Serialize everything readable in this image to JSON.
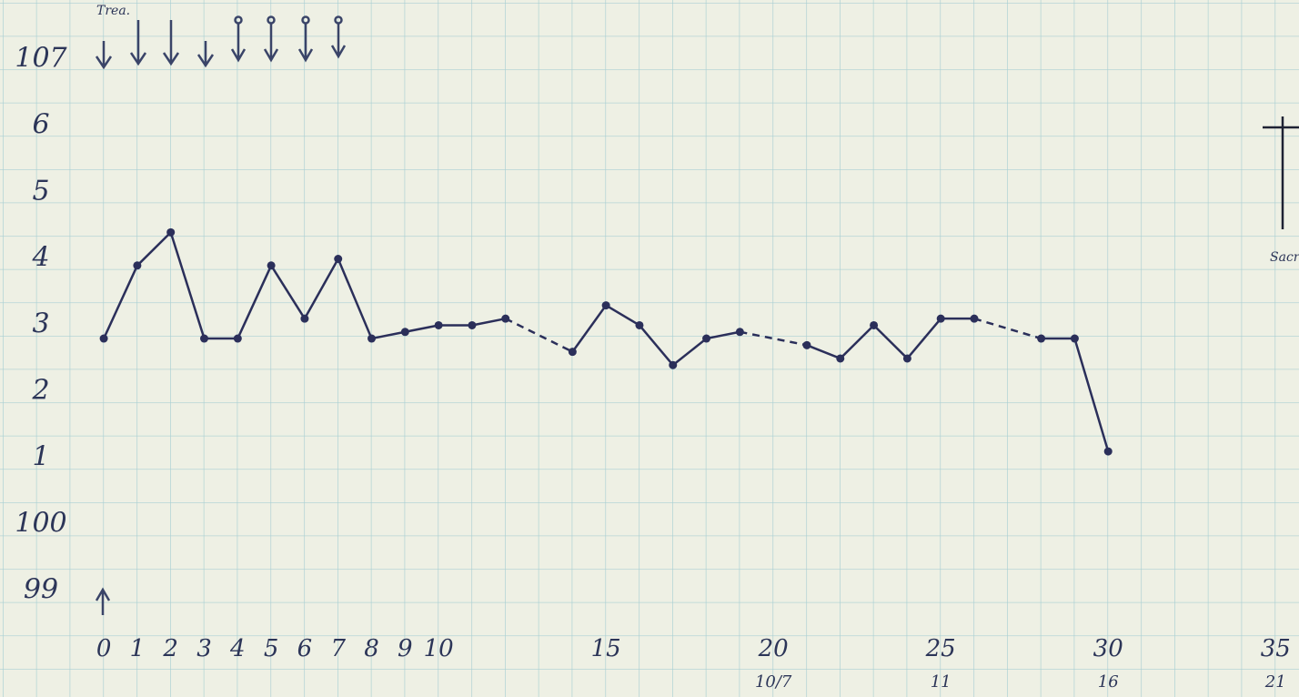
{
  "chart_data": {
    "type": "line",
    "x": [
      0,
      1,
      2,
      3,
      4,
      5,
      6,
      7,
      8,
      9,
      10,
      11,
      12,
      14,
      15,
      16,
      17,
      18,
      19,
      21,
      22,
      23,
      24,
      25,
      26,
      28,
      29,
      30
    ],
    "values": [
      102.8,
      103.9,
      104.4,
      102.8,
      102.8,
      103.9,
      103.1,
      104.0,
      102.8,
      102.9,
      103.0,
      103.0,
      103.1,
      102.6,
      103.3,
      103.0,
      102.4,
      102.8,
      102.9,
      102.7,
      102.5,
      103.0,
      102.5,
      103.1,
      103.1,
      102.8,
      102.8,
      101.1
    ],
    "color": "#2b2f5a",
    "xlim": [
      -3.1,
      35.7
    ],
    "ylim": [
      97.4,
      107.9
    ],
    "xticks": [
      0,
      1,
      2,
      3,
      4,
      5,
      6,
      7,
      8,
      9,
      10,
      15,
      20,
      25,
      30,
      35
    ],
    "secondary_xticks": [
      {
        "value": 20,
        "label": "10/7"
      },
      {
        "value": 25,
        "label": "11"
      },
      {
        "value": 30,
        "label": "16"
      },
      {
        "value": 35,
        "label": "21"
      }
    ],
    "yticks": [
      107,
      {
        "value": 106,
        "label": "6"
      },
      {
        "value": 105,
        "label": "5"
      },
      {
        "value": 104,
        "label": "4"
      },
      {
        "value": 103,
        "label": "3"
      },
      {
        "value": 102,
        "label": "2"
      },
      {
        "value": 101,
        "label": "1"
      },
      100,
      99
    ],
    "annotations": [
      "Trea.",
      "Sacr"
    ],
    "grid": false
  }
}
